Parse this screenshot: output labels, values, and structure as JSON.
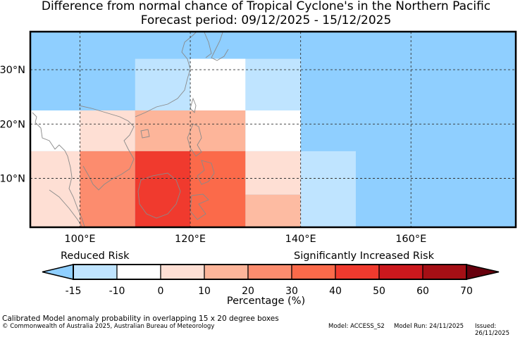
{
  "title_line1": "Difference from normal chance of Tropical Cyclone's in the Northern Pacific",
  "title_line2": "Forecast period: 09/12/2025 - 15/12/2025",
  "map": {
    "lon_range": [
      91,
      179
    ],
    "lat_range": [
      1,
      37
    ],
    "lon_ticks": [
      "100°E",
      "120°E",
      "140°E",
      "160°E"
    ],
    "lat_ticks": [
      "30°N",
      "20°N",
      "10°N"
    ],
    "grid_lons": [
      100,
      120,
      140,
      160
    ],
    "grid_lats": [
      30,
      20,
      10
    ],
    "background_color": "#8fcfff",
    "cells": [
      {
        "lon": [
          110,
          130
        ],
        "lat": [
          22.5,
          32
        ],
        "color": "#bfe4ff"
      },
      {
        "lon": [
          120,
          130
        ],
        "lat": [
          22.5,
          32
        ],
        "color": "#ffffff"
      },
      {
        "lon": [
          130,
          140
        ],
        "lat": [
          22.5,
          32
        ],
        "color": "#bfe4ff"
      },
      {
        "lon": [
          91,
          100
        ],
        "lat": [
          15,
          22.5
        ],
        "color": "#ffffff"
      },
      {
        "lon": [
          100,
          110
        ],
        "lat": [
          15,
          22.5
        ],
        "color": "#fedfd4"
      },
      {
        "lon": [
          110,
          130
        ],
        "lat": [
          15,
          22.5
        ],
        "color": "#fdb59a"
      },
      {
        "lon": [
          130,
          140
        ],
        "lat": [
          15,
          22.5
        ],
        "color": "#ffffff"
      },
      {
        "lon": [
          91,
          100
        ],
        "lat": [
          1,
          15
        ],
        "color": "#fedfd4"
      },
      {
        "lon": [
          100,
          110
        ],
        "lat": [
          1,
          15
        ],
        "color": "#fc8c6e"
      },
      {
        "lon": [
          110,
          120
        ],
        "lat": [
          1,
          15
        ],
        "color": "#f03a2e"
      },
      {
        "lon": [
          120,
          130
        ],
        "lat": [
          1,
          15
        ],
        "color": "#fb6a4a"
      },
      {
        "lon": [
          130,
          140
        ],
        "lat": [
          7,
          15
        ],
        "color": "#fedfd4"
      },
      {
        "lon": [
          130,
          140
        ],
        "lat": [
          1,
          7
        ],
        "color": "#fdbba2"
      },
      {
        "lon": [
          140,
          150
        ],
        "lat": [
          1,
          15
        ],
        "color": "#bfe4ff"
      }
    ]
  },
  "colorbar": {
    "reduced_label": "Reduced Risk",
    "increased_label": "Significantly Increased Risk",
    "ticks": [
      "-15",
      "-10",
      "0",
      "10",
      "20",
      "30",
      "40",
      "50",
      "60",
      "70"
    ],
    "colors": [
      "#8fcfff",
      "#bfe4ff",
      "#ffffff",
      "#fedfd4",
      "#fdb59a",
      "#fc8c6e",
      "#fb6a4a",
      "#f03a2e",
      "#cb181d",
      "#a50f15",
      "#67000d"
    ],
    "label": "Percentage (%)"
  },
  "footer": {
    "line1": "Calibrated Model anomaly probability in overlapping 15 x 20 degree boxes",
    "line2": "© Commonwealth of Australia 2025, Australian Bureau of Meteorology",
    "model": "Model: ACCESS_S2",
    "model_run": "Model Run: 24/11/2025",
    "issued": "Issued: 26/11/2025"
  }
}
